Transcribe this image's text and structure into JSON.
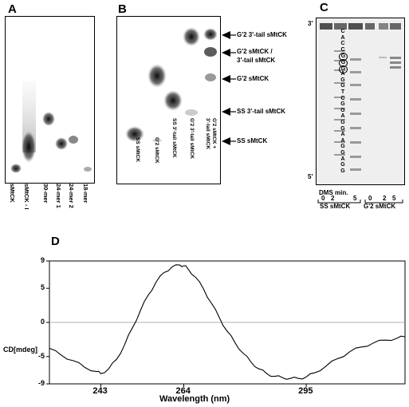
{
  "panels": {
    "a": {
      "letter": "A",
      "lanes": [
        "sMtCK",
        "sMtCK - I",
        "30-mer",
        "24-mer 1",
        "24-mer 2",
        "18-mer"
      ]
    },
    "b": {
      "letter": "B",
      "lanes": [
        "SS sMtCK",
        "G'2 sMtCK",
        "SS 3'-tail sMtCK",
        "G'2 3'-tail sMtCK",
        "G'2 sMtCK +",
        "3'-tail sMtCK"
      ],
      "arrows": [
        "G'2 3'-tail sMtCK",
        "G'2 sMtCK /",
        "3'-tail sMtCK",
        "G'2 sMtCK",
        "SS 3'-tail sMtCK",
        "SS sMtCK"
      ]
    },
    "c": {
      "letter": "C",
      "end_3": "3'",
      "end_5": "5'",
      "sequence": [
        "C",
        "A",
        "C",
        "C",
        "G",
        "G",
        "G",
        "A",
        "G",
        "G",
        "T",
        "C",
        "G",
        "G",
        "A",
        "G",
        "G",
        "A",
        "A",
        "G",
        "G",
        "A",
        "G",
        "G"
      ],
      "dms_label": "DMS min.",
      "ss_times": [
        "0",
        "2",
        "5"
      ],
      "g2_times": [
        "0",
        "2",
        "5"
      ],
      "ss_label": "SS sMtCK",
      "g2_label": "G'2 sMtCK"
    },
    "d": {
      "letter": "D",
      "y_label": "CD[mdeg]",
      "x_label": "Wavelength (nm)",
      "y_ticks": [
        "9",
        "5",
        "0",
        "-5",
        "-9"
      ],
      "x_ticks": [
        "243",
        "264",
        "295"
      ]
    }
  },
  "chart_data": {
    "type": "line",
    "title": "",
    "xlabel": "Wavelength (nm)",
    "ylabel": "CD[mdeg]",
    "xlim": [
      230,
      320
    ],
    "ylim": [
      -9,
      9
    ],
    "grid": false,
    "reference_line_y": 0,
    "series": [
      {
        "x": [
          230,
          233,
          236,
          239,
          242,
          243,
          245,
          247,
          249,
          251,
          253,
          255,
          257,
          259,
          261,
          263,
          264,
          265,
          267,
          269,
          271,
          273,
          275,
          277,
          279,
          281,
          283,
          285,
          287,
          289,
          291,
          293,
          295,
          297,
          300,
          303,
          306,
          309,
          312,
          315,
          318,
          320
        ],
        "y": [
          -3.8,
          -4.8,
          -5.6,
          -6.6,
          -7.2,
          -7.5,
          -6.8,
          -5.4,
          -3.3,
          -0.8,
          1.7,
          4.0,
          5.9,
          7.3,
          8.1,
          8.4,
          8.3,
          7.9,
          6.6,
          4.9,
          2.8,
          0.7,
          -1.3,
          -3.0,
          -4.5,
          -5.8,
          -6.8,
          -7.5,
          -7.9,
          -8.1,
          -8.2,
          -8.2,
          -8.0,
          -7.4,
          -6.4,
          -5.3,
          -4.3,
          -3.6,
          -3.0,
          -2.6,
          -2.3,
          -2.1
        ]
      }
    ]
  }
}
